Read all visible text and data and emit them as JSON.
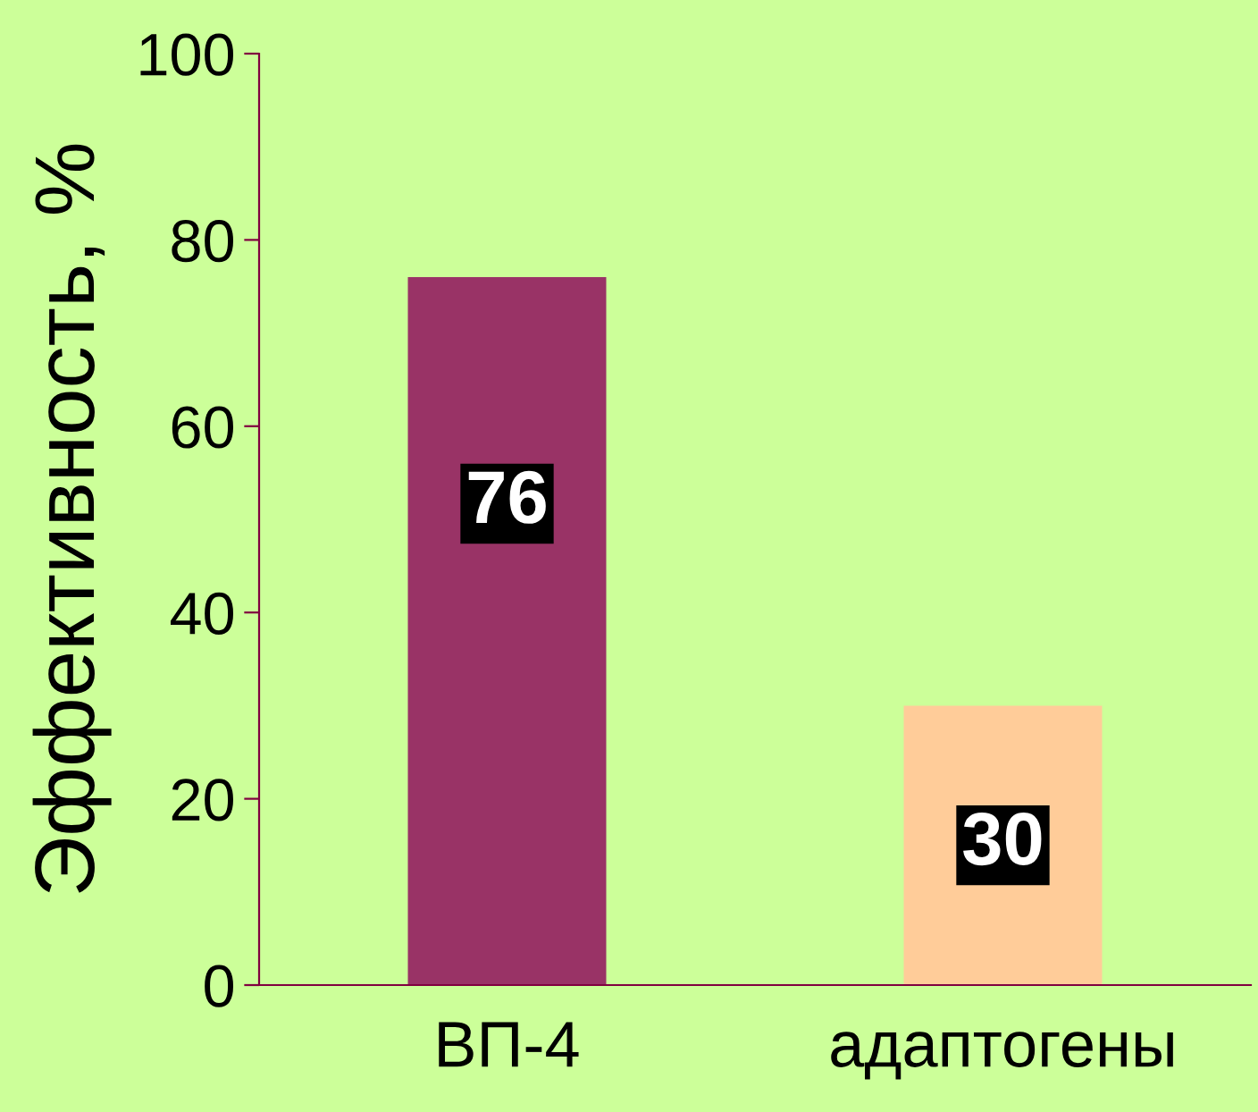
{
  "chart_data": {
    "type": "bar",
    "ylabel": "Эффективность, %",
    "categories": [
      "ВП-4",
      "адаптогены"
    ],
    "values": [
      76,
      30
    ],
    "colors": [
      "#993366",
      "#ffcc99"
    ],
    "ylim": [
      0,
      100
    ],
    "yticks": [
      0,
      20,
      40,
      60,
      80,
      100
    ],
    "data_labels": true,
    "grid": false,
    "legend": false
  }
}
